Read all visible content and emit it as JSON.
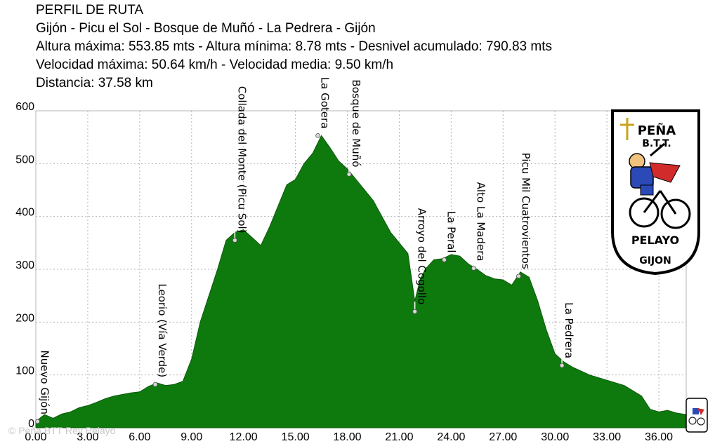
{
  "header": {
    "title": "PERFIL DE RUTA",
    "route": "Gijón - Picu el Sol - Bosque de Muñó - La Pedrera - Gijón",
    "altitudes": "Altura máxima: 553.85 mts - Altura mínima: 8.78 mts - Desnivel acumulado: 790.83 mts",
    "speeds": "Velocidad máxima: 50.64 km/h - Velocidad media: 9.50 km/h",
    "distance": "Distancia: 37.58 km"
  },
  "credit": "© Peña BTT Rey Pelayo",
  "logo": {
    "top_text": "PEÑA",
    "mid_text": "B.T.T.",
    "name_text": "PELAYO",
    "city_text": "GIJON",
    "icon": "cyclist-emblem-icon"
  },
  "colors": {
    "fill": "#0e7a0e",
    "stroke": "#0a5a0a",
    "grid": "#b4b4b4"
  },
  "chart_data": {
    "type": "area",
    "xlim": [
      0,
      37.58
    ],
    "ylim": [
      0,
      600
    ],
    "x_ticks": [
      "0.00",
      "3.00",
      "6.00",
      "9.00",
      "12.00",
      "15.00",
      "18.00",
      "21.00",
      "24.00",
      "27.00",
      "30.00",
      "33.00",
      "36.00"
    ],
    "x_tick_values": [
      0,
      3,
      6,
      9,
      12,
      15,
      18,
      21,
      24,
      27,
      30,
      33,
      36
    ],
    "y_ticks": [
      "600",
      "500",
      "400",
      "300",
      "200",
      "100",
      "0"
    ],
    "y_tick_values": [
      600,
      500,
      400,
      300,
      200,
      100,
      0
    ],
    "grid": true,
    "series": [
      {
        "x": [
          0,
          0.5,
          1.0,
          1.5,
          2.0,
          2.5,
          3.0,
          3.5,
          4.0,
          4.5,
          5.0,
          5.5,
          6.0,
          6.5,
          7.0,
          7.5,
          8.0,
          8.5,
          9.0,
          9.5,
          10.0,
          10.5,
          11.0,
          11.5,
          12.0,
          12.5,
          13.0,
          13.5,
          14.0,
          14.5,
          15.0,
          15.5,
          16.0,
          16.5,
          17.0,
          17.5,
          18.0,
          18.5,
          19.0,
          19.5,
          20.0,
          20.5,
          21.0,
          21.5,
          21.9,
          22.2,
          22.5,
          23.0,
          23.5,
          24.0,
          24.5,
          25.0,
          25.5,
          26.0,
          26.5,
          27.0,
          27.5,
          28.0,
          28.5,
          29.0,
          29.5,
          30.0,
          30.5,
          31.0,
          32.0,
          33.0,
          34.0,
          35.0,
          35.5,
          36.0,
          36.5,
          37.0,
          37.58
        ],
        "y": [
          12,
          25,
          18,
          26,
          30,
          38,
          42,
          48,
          55,
          60,
          63,
          66,
          68,
          78,
          85,
          80,
          82,
          88,
          130,
          200,
          250,
          300,
          355,
          370,
          375,
          360,
          345,
          380,
          420,
          460,
          470,
          500,
          520,
          553,
          530,
          505,
          490,
          470,
          450,
          430,
          400,
          370,
          350,
          330,
          240,
          280,
          300,
          318,
          320,
          328,
          325,
          310,
          300,
          288,
          282,
          280,
          270,
          295,
          285,
          240,
          185,
          140,
          125,
          115,
          100,
          90,
          80,
          60,
          35,
          30,
          33,
          28,
          25
        ]
      }
    ],
    "annotations": [
      {
        "label": "Nuevo Gijón",
        "x": 0.1,
        "y": 12
      },
      {
        "label": "Leorio (Vía Verde)",
        "x": 6.9,
        "y": 82
      },
      {
        "label": "Collada del Monte (Picu Sol)",
        "x": 11.5,
        "y": 355
      },
      {
        "label": "La Gotera",
        "x": 16.3,
        "y": 553
      },
      {
        "label": "Bosque de Muñó",
        "x": 18.1,
        "y": 480
      },
      {
        "label": "Arroyo del Cogollo",
        "x": 21.9,
        "y": 220
      },
      {
        "label": "La Peral",
        "x": 23.6,
        "y": 318
      },
      {
        "label": "Alto La Madera",
        "x": 25.3,
        "y": 302
      },
      {
        "label": "Picu Mil Cuatrovientos",
        "x": 27.9,
        "y": 287
      },
      {
        "label": "La Pedrera",
        "x": 30.4,
        "y": 118
      }
    ]
  }
}
